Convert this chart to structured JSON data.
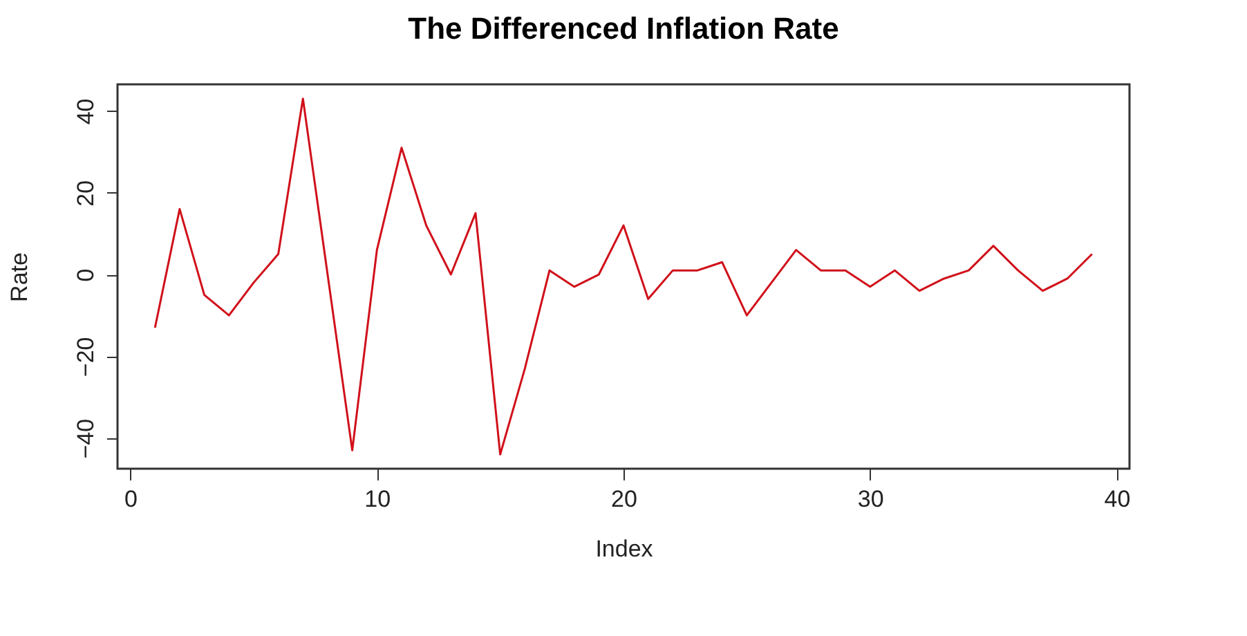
{
  "chart_data": {
    "type": "line",
    "title": "The Differenced Inflation Rate",
    "xlabel": "Index",
    "ylabel": "Rate",
    "x": [
      1,
      2,
      3,
      4,
      5,
      6,
      7,
      8,
      9,
      10,
      11,
      12,
      13,
      14,
      15,
      16,
      17,
      18,
      19,
      20,
      21,
      22,
      23,
      24,
      25,
      26,
      27,
      28,
      29,
      30,
      31,
      32,
      33,
      34,
      35,
      36,
      37,
      38,
      39
    ],
    "series": [
      {
        "color": "#d0101a",
        "values": [
          -13,
          16,
          -5,
          -10,
          -2,
          5,
          43,
          0,
          -43,
          6,
          31,
          12,
          0,
          15,
          -44,
          -23,
          1,
          -3,
          0,
          12,
          -6,
          1,
          1,
          3,
          -10,
          -2,
          6,
          1,
          1,
          -3,
          1,
          -4,
          -1,
          1,
          7,
          1,
          -4,
          -1,
          5
        ]
      }
    ],
    "xlim": [
      -0.52,
      40.52
    ],
    "ylim": [
      -47.5,
      46.5
    ],
    "xticks": [
      0,
      10,
      20,
      30,
      40
    ],
    "yticks": [
      -40,
      -20,
      0,
      20,
      40
    ],
    "grid": false,
    "legend": false,
    "marker": "none",
    "line_style": "solid"
  }
}
